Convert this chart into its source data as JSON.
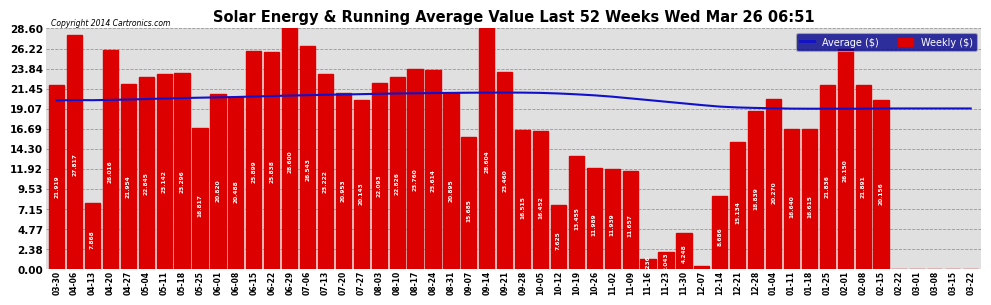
{
  "title": "Solar Energy & Running Average Value Last 52 Weeks Wed Mar 26 06:51",
  "copyright": "Copyright 2014 Cartronics.com",
  "legend_labels": [
    "Average ($)",
    "Weekly ($)"
  ],
  "bar_color": "#dd0000",
  "avg_line_color": "#1111cc",
  "background_color": "#ffffff",
  "plot_bg_color": "#e0e0e0",
  "ylim": [
    0.0,
    28.6
  ],
  "yticks": [
    0.0,
    2.38,
    4.77,
    7.15,
    9.53,
    11.92,
    14.3,
    16.69,
    19.07,
    21.45,
    23.84,
    26.22,
    28.6
  ],
  "categories": [
    "03-30",
    "04-06",
    "04-13",
    "04-20",
    "04-27",
    "05-04",
    "05-11",
    "05-18",
    "05-25",
    "06-01",
    "06-08",
    "06-15",
    "06-22",
    "06-29",
    "07-06",
    "07-13",
    "07-20",
    "07-27",
    "08-03",
    "08-10",
    "08-17",
    "08-24",
    "08-31",
    "09-07",
    "09-14",
    "09-21",
    "09-28",
    "10-05",
    "10-12",
    "10-19",
    "10-26",
    "11-02",
    "11-09",
    "11-16",
    "11-23",
    "11-30",
    "12-07",
    "12-14",
    "12-21",
    "12-28",
    "01-04",
    "01-11",
    "01-18",
    "01-25",
    "02-01",
    "02-08",
    "02-15",
    "02-22",
    "03-01",
    "03-08",
    "03-15",
    "03-22"
  ],
  "values": [
    21.919,
    27.817,
    7.868,
    26.016,
    21.954,
    22.845,
    23.142,
    23.296,
    16.817,
    20.82,
    20.488,
    25.899,
    25.838,
    28.6,
    26.543,
    23.222,
    20.953,
    20.143,
    22.093,
    22.826,
    23.76,
    23.614,
    20.895,
    15.685,
    28.604,
    23.46,
    16.515,
    16.452,
    7.625,
    13.455,
    11.989,
    11.939,
    11.657,
    1.236,
    2.043,
    4.248,
    0.392,
    8.686,
    15.134,
    18.839,
    20.27,
    16.64,
    16.615,
    21.836,
    26.15,
    21.891,
    20.156,
    0.0,
    0.0,
    0.0,
    0.0,
    0.0
  ],
  "avg_values": [
    20.05,
    20.1,
    20.08,
    20.12,
    20.16,
    20.22,
    20.28,
    20.34,
    20.38,
    20.42,
    20.46,
    20.52,
    20.58,
    20.63,
    20.68,
    20.72,
    20.76,
    20.8,
    20.84,
    20.88,
    20.9,
    20.93,
    20.95,
    20.97,
    20.98,
    20.99,
    20.98,
    20.95,
    20.88,
    20.78,
    20.66,
    20.5,
    20.3,
    20.1,
    19.9,
    19.7,
    19.5,
    19.32,
    19.22,
    19.16,
    19.12,
    19.08,
    19.07,
    19.07,
    19.07,
    19.07,
    19.1,
    19.1,
    19.1,
    19.1,
    19.1,
    19.1
  ]
}
